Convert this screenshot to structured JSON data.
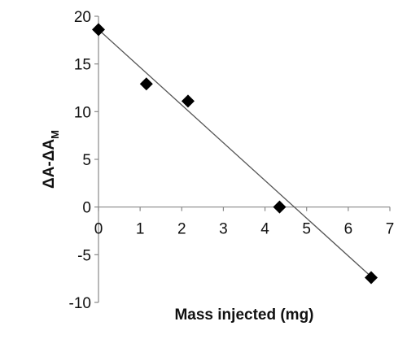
{
  "chart_data": {
    "type": "scatter",
    "xlabel": "Mass injected (mg)",
    "ylabel": {
      "main": "ΔA-ΔA",
      "subscript": "M"
    },
    "xlim": [
      0,
      7
    ],
    "ylim": [
      -10,
      20
    ],
    "x_ticks": [
      0,
      1,
      2,
      3,
      4,
      5,
      6,
      7
    ],
    "y_ticks": [
      20,
      15,
      10,
      5,
      0,
      -5,
      -10
    ],
    "marker": "diamond",
    "marker_color": "#000000",
    "line_color": "#555555",
    "grid": false,
    "legend": "none",
    "series": [
      {
        "points": [
          {
            "x": 0,
            "y": 18.6
          },
          {
            "x": 1.15,
            "y": 12.9
          },
          {
            "x": 2.15,
            "y": 11.1
          },
          {
            "x": 4.35,
            "y": 0.0
          },
          {
            "x": 6.55,
            "y": -7.4
          }
        ]
      }
    ],
    "trendline": {
      "type": "linear",
      "from": {
        "x": 0,
        "y": 18.6
      },
      "to": {
        "x": 6.6,
        "y": -7.5
      }
    }
  }
}
